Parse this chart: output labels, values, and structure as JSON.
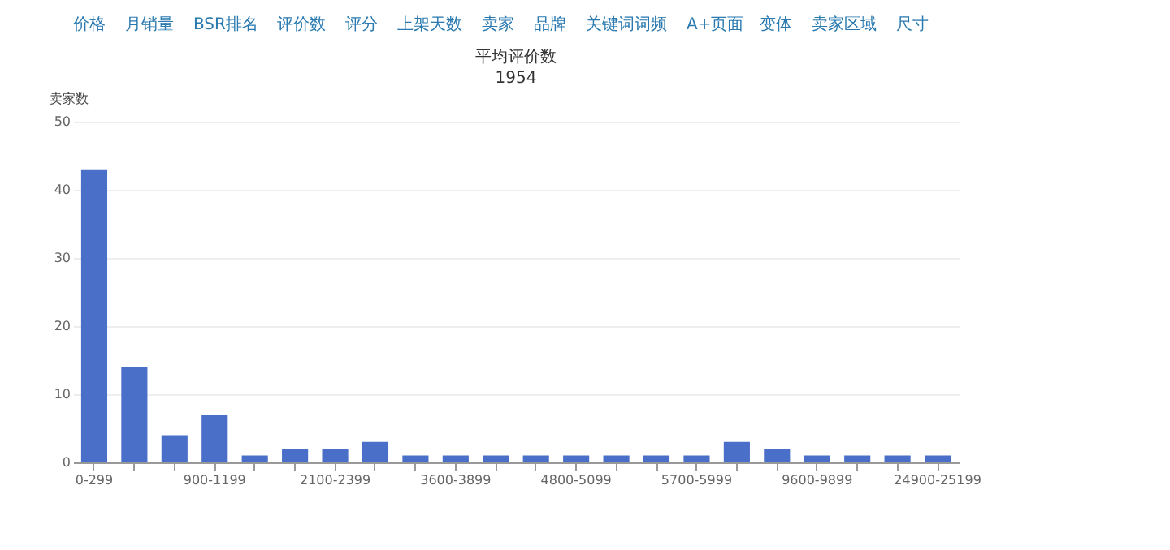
{
  "chart_data": {
    "type": "bar",
    "title": "平均评价数",
    "subtitle": "1954",
    "ylabel": "卖家数",
    "annotations": [
      "价格",
      "月销量",
      "BSR排名",
      "评价数",
      "评分",
      "上架天数",
      "卖家",
      "品牌",
      "关键词词频",
      "A+页面",
      "变体",
      "卖家区域",
      "尺寸"
    ],
    "categories": [
      "0-299",
      null,
      null,
      "900-1199",
      null,
      null,
      "2100-2399",
      null,
      null,
      "3600-3899",
      null,
      null,
      "4800-5099",
      null,
      null,
      "5700-5999",
      null,
      null,
      "9600-9899",
      null,
      null,
      "24900-25199"
    ],
    "values": [
      43,
      14,
      4,
      7,
      1,
      2,
      2,
      3,
      1,
      1,
      1,
      1,
      1,
      1,
      1,
      1,
      3,
      2,
      1,
      1,
      1,
      1
    ],
    "color": "#4a6fc9",
    "ylim": [
      0,
      50
    ],
    "yticks": [
      0,
      10,
      20,
      30,
      40,
      50
    ],
    "grid": "y"
  }
}
